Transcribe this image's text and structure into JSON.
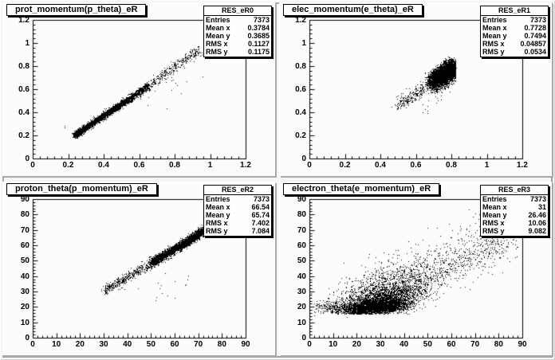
{
  "canvas": {
    "background": "#f6f6f6",
    "pad_background": "#fcfcfc",
    "point_color": "#000000",
    "frame_color": "#000000",
    "shadow_color": "#a9a9a9"
  },
  "pads": [
    {
      "title": "prot_momentum(p_theta)_eR",
      "stats": {
        "name": "RES_eR0",
        "rows": [
          [
            "Entries",
            "7373"
          ],
          [
            "Mean x",
            "0.3784"
          ],
          [
            "Mean y",
            "0.3685"
          ],
          [
            "RMS x",
            "0.1127"
          ],
          [
            "RMS y",
            "0.1175"
          ]
        ]
      }
    },
    {
      "title": "elec_momentum(e_theta)_eR",
      "stats": {
        "name": "RES_eR1",
        "rows": [
          [
            "Entries",
            "7373"
          ],
          [
            "Mean x",
            "0.7728"
          ],
          [
            "Mean y",
            "0.7494"
          ],
          [
            "RMS x",
            "0.04857"
          ],
          [
            "RMS y",
            "0.0534"
          ]
        ]
      }
    },
    {
      "title": "proton_theta(p_momentum)_eR",
      "stats": {
        "name": "RES_eR2",
        "rows": [
          [
            "Entries",
            "7373"
          ],
          [
            "Mean x",
            "66.54"
          ],
          [
            "Mean y",
            "65.74"
          ],
          [
            "RMS x",
            "7.402"
          ],
          [
            "RMS y",
            "7.084"
          ]
        ]
      }
    },
    {
      "title": "electron_theta(e_momentum)_eR",
      "stats": {
        "name": "RES_eR3",
        "rows": [
          [
            "Entries",
            "7373"
          ],
          [
            "Mean x",
            "31"
          ],
          [
            "Mean y",
            "26.46"
          ],
          [
            "RMS x",
            "10.06"
          ],
          [
            "RMS y",
            "9.082"
          ]
        ]
      }
    }
  ],
  "chart_data": [
    {
      "type": "scatter",
      "title": "prot_momentum(p_theta)_eR",
      "entries": 7373,
      "mean_x": 0.3784,
      "mean_y": 0.3685,
      "rms_x": 0.1127,
      "rms_y": 0.1175,
      "xlim": [
        0,
        1.2
      ],
      "ylim": [
        0,
        1.2
      ],
      "xticks": [
        "0",
        "0.2",
        "0.4",
        "0.6",
        "0.8",
        "1",
        "1.2"
      ],
      "yticks": [
        "0",
        "0.2",
        "0.4",
        "0.6",
        "0.8",
        "1",
        "1.2"
      ],
      "minor_divisions": 5,
      "grid": false,
      "legend": false,
      "description": "tight diagonal correlation band, dense from (0.23,0.21) to (0.55,0.53), sparser up to (0.94,0.95), few outliers right of band",
      "clusters": [
        {
          "type": "band",
          "from": [
            0.235,
            0.205
          ],
          "to": [
            0.55,
            0.525
          ],
          "width": 0.013,
          "xwidth": 0.007,
          "count": 3200,
          "bias": 1.15
        },
        {
          "type": "band",
          "from": [
            0.55,
            0.525
          ],
          "to": [
            0.65,
            0.63
          ],
          "width": 0.016,
          "xwidth": 0.006,
          "count": 520
        },
        {
          "type": "band",
          "from": [
            0.65,
            0.63
          ],
          "to": [
            0.94,
            0.95
          ],
          "width": 0.022,
          "xwidth": 0.008,
          "count": 330
        },
        {
          "type": "blob",
          "cx": 0.78,
          "cy": 0.62,
          "sx": 0.09,
          "sy": 0.08,
          "count": 14
        },
        {
          "type": "blob",
          "cx": 0.185,
          "cy": 0.28,
          "sx": 0.008,
          "sy": 0.008,
          "count": 2
        }
      ]
    },
    {
      "type": "scatter",
      "title": "elec_momentum(e_theta)_eR",
      "entries": 7373,
      "mean_x": 0.7728,
      "mean_y": 0.7494,
      "rms_x": 0.04857,
      "rms_y": 0.0534,
      "xlim": [
        0,
        1.2
      ],
      "ylim": [
        0,
        1.2
      ],
      "xticks": [
        "0",
        "0.2",
        "0.4",
        "0.6",
        "0.8",
        "1",
        "1.2"
      ],
      "yticks": [
        "0",
        "0.2",
        "0.4",
        "0.6",
        "0.8",
        "1",
        "1.2"
      ],
      "minor_divisions": 5,
      "grid": false,
      "legend": false,
      "description": "very dense tilted blob x 0.67-0.82 y 0.62-0.88, sparse tail down to (0.49,0.45), few low outliers",
      "clusters": [
        {
          "type": "band",
          "from": [
            0.685,
            0.655
          ],
          "to": [
            0.815,
            0.785
          ],
          "width": 0.04,
          "xwidth": 0.018,
          "count": 5200,
          "bias": 0.8,
          "xmax": 0.825,
          "ymax": 0.885
        },
        {
          "type": "band",
          "from": [
            0.7,
            0.7
          ],
          "to": [
            0.812,
            0.8
          ],
          "width": 0.025,
          "xwidth": 0.012,
          "count": 1600,
          "bias": 0.8,
          "xmax": 0.825,
          "ymax": 0.885
        },
        {
          "type": "band",
          "from": [
            0.495,
            0.465
          ],
          "to": [
            0.665,
            0.625
          ],
          "width": 0.028,
          "xwidth": 0.015,
          "count": 230
        },
        {
          "type": "blob",
          "cx": 0.7,
          "cy": 0.53,
          "sx": 0.05,
          "sy": 0.04,
          "count": 12
        },
        {
          "type": "blob",
          "cx": 0.655,
          "cy": 0.425,
          "sx": 0.01,
          "sy": 0.012,
          "count": 4
        }
      ]
    },
    {
      "type": "scatter",
      "title": "proton_theta(p_momentum)_eR",
      "entries": 7373,
      "mean_x": 66.54,
      "mean_y": 65.74,
      "rms_x": 7.402,
      "rms_y": 7.084,
      "xlim": [
        0,
        90
      ],
      "ylim": [
        0,
        90
      ],
      "xticks": [
        "0",
        "10",
        "20",
        "30",
        "40",
        "50",
        "60",
        "70",
        "80",
        "90"
      ],
      "yticks": [
        "0",
        "10",
        "20",
        "30",
        "40",
        "50",
        "60",
        "70",
        "80",
        "90"
      ],
      "minor_divisions": 5,
      "grid": false,
      "legend": false,
      "description": "diagonal band from (30,31) to (78,75), solid black above 52, sparse below, outliers under band near (45-62, 27-44)",
      "clusters": [
        {
          "type": "band",
          "from": [
            30.5,
            31
          ],
          "to": [
            50,
            48.5
          ],
          "width": 1.5,
          "xwidth": 0.8,
          "count": 420
        },
        {
          "type": "band",
          "from": [
            50,
            48.5
          ],
          "to": [
            64,
            61.5
          ],
          "width": 1.4,
          "xwidth": 0.7,
          "count": 1600
        },
        {
          "type": "band",
          "from": [
            64,
            61.5
          ],
          "to": [
            77.5,
            74.5
          ],
          "width": 1.3,
          "xwidth": 0.7,
          "count": 2300
        },
        {
          "type": "blob",
          "cx": 55,
          "cy": 35,
          "sx": 6,
          "sy": 5,
          "count": 16
        },
        {
          "type": "blob",
          "cx": 33,
          "cy": 32,
          "sx": 2.5,
          "sy": 1.5,
          "count": 25
        }
      ]
    },
    {
      "type": "scatter",
      "title": "electron_theta(e_momentum)_eR",
      "entries": 7373,
      "mean_x": 31,
      "mean_y": 26.46,
      "rms_x": 10.06,
      "rms_y": 9.082,
      "xlim": [
        0,
        90
      ],
      "ylim": [
        0,
        90
      ],
      "xticks": [
        "0",
        "10",
        "20",
        "30",
        "40",
        "50",
        "60",
        "70",
        "80",
        "90"
      ],
      "yticks": [
        "0",
        "10",
        "20",
        "30",
        "40",
        "50",
        "60",
        "70",
        "80",
        "90"
      ],
      "minor_divisions": 5,
      "grid": false,
      "legend": false,
      "description": "large cloud: solid black core x 17-36 y 16-24 with flat floor ~16, fan spreading up-right, sparse rising arm from (40,30) to (88,70), thin left tail x 2-14 y 17-24",
      "clusters": [
        {
          "type": "blob",
          "cx": 28,
          "cy": 20,
          "sx": 6.5,
          "sy": 2.2,
          "count": 3200,
          "corr": 0.12,
          "ymin": 15.5
        },
        {
          "type": "blob",
          "cx": 31,
          "cy": 24.5,
          "sx": 8,
          "sy": 4,
          "count": 1700,
          "corr": 0.35,
          "ymin": 15.5
        },
        {
          "type": "blob",
          "cx": 30,
          "cy": 30,
          "sx": 11,
          "sy": 7,
          "count": 1100,
          "corr": 0.55,
          "ymin": 15.5
        },
        {
          "type": "blob",
          "cx": 33,
          "cy": 34,
          "sx": 14,
          "sy": 10,
          "count": 450,
          "corr": 0.6,
          "ymin": 16
        },
        {
          "type": "band",
          "from": [
            38,
            29
          ],
          "to": [
            86,
            66
          ],
          "width": 5.5,
          "xwidth": 3,
          "count": 520
        },
        {
          "type": "band",
          "from": [
            50,
            47
          ],
          "to": [
            88,
            71
          ],
          "width": 9,
          "xwidth": 4,
          "count": 160
        },
        {
          "type": "blob",
          "cx": 8,
          "cy": 20,
          "sx": 4,
          "sy": 2,
          "count": 140,
          "xmin": 1.5
        },
        {
          "type": "blob",
          "cx": 72,
          "cy": 75,
          "sx": 5,
          "sy": 4,
          "count": 14
        }
      ]
    }
  ]
}
